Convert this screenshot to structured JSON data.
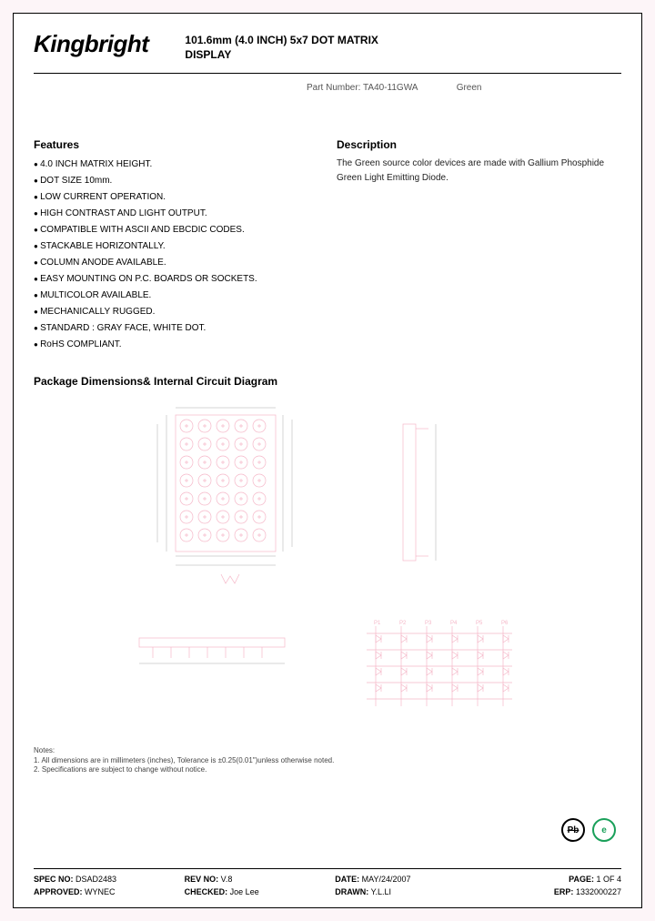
{
  "brand": "Kingbright",
  "title_line1": "101.6mm (4.0 INCH) 5x7 DOT MATRIX",
  "title_line2": "DISPLAY",
  "part_label": "Part Number: TA40-11GWA",
  "part_color": "Green",
  "features_heading": "Features",
  "features": [
    "4.0 INCH MATRIX HEIGHT.",
    "DOT SIZE 10mm.",
    "LOW CURRENT OPERATION.",
    "HIGH CONTRAST AND LIGHT OUTPUT.",
    "COMPATIBLE WITH ASCII AND EBCDIC CODES.",
    "STACKABLE HORIZONTALLY.",
    "COLUMN ANODE AVAILABLE.",
    "EASY MOUNTING ON P.C. BOARDS OR SOCKETS.",
    "MULTICOLOR AVAILABLE.",
    "MECHANICALLY RUGGED.",
    "STANDARD : GRAY FACE, WHITE DOT.",
    "RoHS COMPLIANT."
  ],
  "description_heading": "Description",
  "description": "The Green source color devices are made with Gallium Phosphide Green Light Emitting Diode.",
  "package_heading": "Package Dimensions& Internal Circuit Diagram",
  "diagram": {
    "stroke_color": "#f5b7c8",
    "matrix": {
      "rows": 7,
      "cols": 5,
      "dot_r": 6,
      "pitch": 15
    }
  },
  "notes_label": "Notes:",
  "note1": "1. All dimensions are in millimeters (inches), Tolerance is ±0.25(0.01\")unless otherwise noted.",
  "note2": "2. Specifications are subject to change without notice.",
  "pb_icon": "Pb",
  "rohs_icon": "e",
  "footer": {
    "spec_label": "SPEC NO:",
    "spec": "DSAD2483",
    "rev_label": "REV NO:",
    "rev": "V.8",
    "date_label": "DATE:",
    "date": "MAY/24/2007",
    "page_label": "PAGE:",
    "page": "1  OF  4",
    "approved_label": "APPROVED:",
    "approved": "WYNEC",
    "checked_label": "CHECKED:",
    "checked": "Joe Lee",
    "drawn_label": "DRAWN:",
    "drawn": "Y.L.LI",
    "erp_label": "ERP:",
    "erp": "1332000227"
  }
}
